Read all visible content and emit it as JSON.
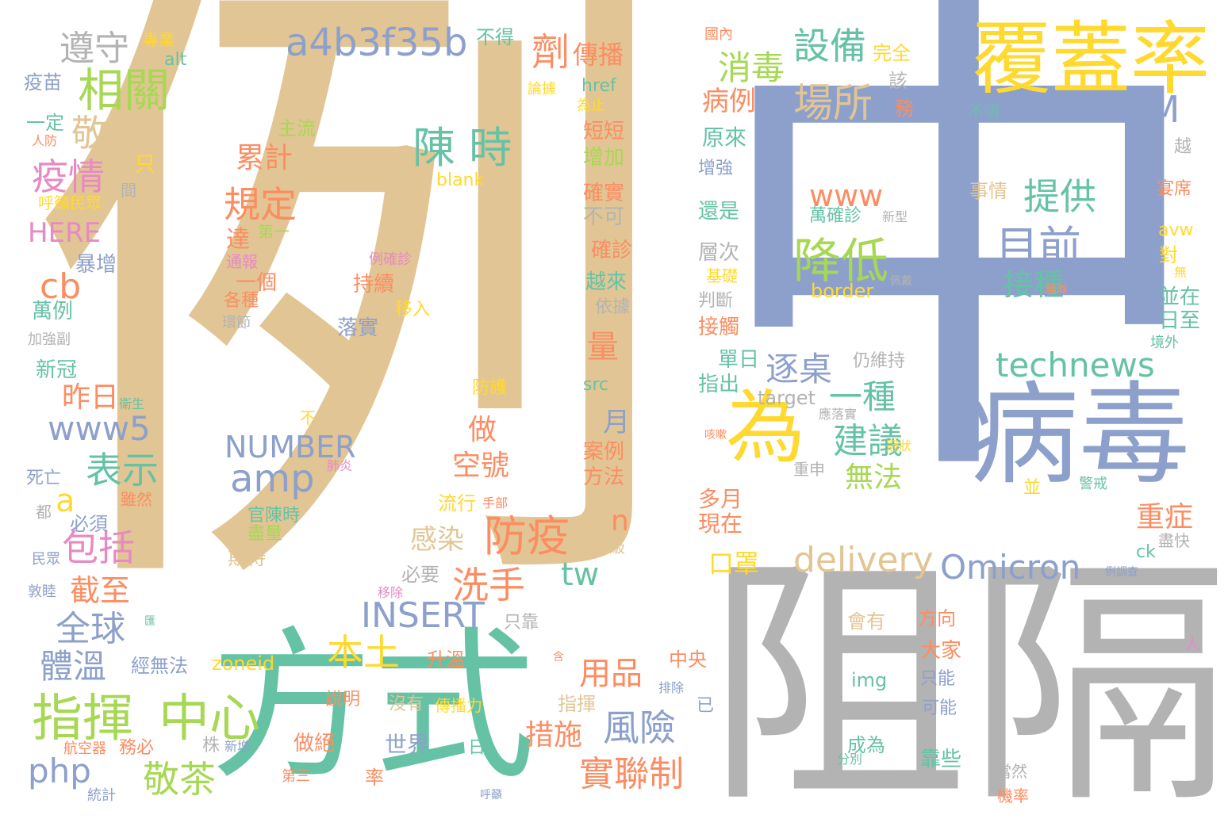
{
  "palette": {
    "tan": "#e2c594",
    "blue": "#8da0cb",
    "green": "#66c2a5",
    "grey": "#b3b3b3",
    "lime": "#a6d854",
    "yellow": "#ffd92f",
    "orange": "#fc8d62",
    "pink": "#e78ac3"
  },
  "words": {
    "li": "例",
    "zhong": "中",
    "fangshi": "方式",
    "zuge": "阻隔",
    "bingdu": "病毒",
    "fugailv": "覆蓋率",
    "yi": "一",
    "wei": "為",
    "xiangguan": "相關",
    "zhihui": "指揮",
    "zhongxin": "中心",
    "chenshi": "陳 時",
    "changsuo": "場所",
    "mubiao": "目前",
    "jiangdi": "降低",
    "tigong": "提供",
    "shebei": "設備",
    "xiaodu": "消毒",
    "a4b3": "a4b3f35b",
    "random": "RANDOM",
    "technews": "technews",
    "delivery": "delivery",
    "omicron": "Omicron",
    "insert": "INSERT",
    "number": "NUMBER",
    "amp": "amp",
    "php": "php",
    "www5": "www5",
    "www": "www",
    "zunshou": "遵守",
    "jingjiu": "敬酒",
    "yiqing": "疫情",
    "guiding": "規定",
    "fangyi": "防疫",
    "xishou": "洗手",
    "bentu": "本土",
    "fengxian": "風險",
    "shilianzhi": "實聯制",
    "jingcha": "敬茶",
    "quanqiu": "全球",
    "tiwen": "體溫",
    "baokuo": "包括",
    "biaoshi": "表示",
    "jianyi": "建議",
    "yizhong": "一種",
    "zhuozhuo": "逐桌",
    "wufa": "無法",
    "jiezhong": "接種",
    "wanquezhen": "萬確診",
    "xinxing": "新型",
    "border": "border",
    "kouzhao": "口罩",
    "zhongzheng": "重症",
    "cb": "cb",
    "a": "a",
    "here": "HERE",
    "tw": "tw",
    "n": "n",
    "ji": "劑",
    "chuanbo": "傳播",
    "bingli": "病例",
    "liang": "量",
    "zuo": "做",
    "kong": "空號",
    "ganran": "感染",
    "yongpin": "用品",
    "cuoshi": "措施",
    "shijie": "世界",
    "yue": "月",
    "anli": "案例",
    "fangfa": "方法",
    "leiji": "累計",
    "da": "達",
    "zuori": "昨日",
    "jiezhi": "截至",
    "duoyue": "多月",
    "xianzai": "現在",
    "blank": "blank",
    "src": "src",
    "zoneid": "zoneid",
    "img": "img",
    "href": "href",
    "alt": "alt",
    "ck": "ck",
    "avw": "avw",
    "target": "target",
    "buide": "不得",
    "wanquan": "完全",
    "gai": "該",
    "wu": "務",
    "bumingchu": "不明",
    "zhuanye": "專業",
    "guonei": "國內",
    "lunju": "論據",
    "weizhi": "為止",
    "yimiao": "疫苗",
    "zhuliu": "主流",
    "duanduan": "短短",
    "zengjia": "增加",
    "yiding": "一定",
    "renfang": "人防",
    "zhi": "只",
    "jian": "間",
    "huyu": "呼籲民眾",
    "queshi": "確實",
    "buke": "不可",
    "diyi": "第一",
    "tongbao": "通報",
    "yige": "一個",
    "gezhong": "各種",
    "huanjie": "環節",
    "queshen": "確診",
    "yuelaiyue": "越來",
    "yiju": "依據",
    "chixu": "持續",
    "yiru": "移入",
    "luoshi": "落實",
    "fanghu": "防護",
    "baozeng": "暴增",
    "wanli": "萬例",
    "jiaqiang": "加強副",
    "xinguan": "新冠",
    "lique": "例確診",
    "yuanlai": "原來",
    "zengqiang": "增強",
    "haishi": "還是",
    "cengci": "層次",
    "jichu": "基礎",
    "panduan": "判斷",
    "jiechu": "接觸",
    "danri": "單日",
    "zhichu": "指出",
    "shiqing": "事情",
    "yanxi": "宴席",
    "dui": "對",
    "wu2": "無",
    "bingzai": "並在",
    "rizhi": "日至",
    "jingwai": "境外",
    "reng": "仍維持",
    "peidai": "佩戴",
    "budui": "艦隊",
    "yuan": "越",
    "weisheng": "衛生",
    "bu": "不",
    "kesou": "咳嗽",
    "guanzhuang": "冠狀",
    "zhongshen": "重申",
    "bing": "並",
    "jingjie": "警戒",
    "siwang": "死亡",
    "suiran": "雖然",
    "feiyan": "肺炎",
    "shoubu": "手部",
    "liuxing": "流行",
    "dou": "都",
    "bixu": "必須",
    "guanchen": "官陳時",
    "jinliang": "盡量",
    "qidai": "期待",
    "erji": "二級",
    "minzhong": "民眾",
    "dunmu": "敦睦",
    "biyao": "必要",
    "yichu": "移除",
    "zhikao": "只靠",
    "huiyou": "會有",
    "fangxiang": "方向",
    "dajia": "大家",
    "zhineng": "只能",
    "keneng": "可能",
    "chengwei": "成為",
    "kaoxie": "靠些",
    "fenbie": "分別",
    "dangran": "當然",
    "jilv": "機率",
    "jinkuai": "盡快",
    "lidiaocha": "例調查",
    "ren": "人",
    "hui": "匯",
    "jingwufa": "經無法",
    "shengwen": "升溫",
    "zhongyang": "中央",
    "paichu": "排除",
    "yi2": "已",
    "han": "含",
    "shuoming": "說明",
    "meiyou": "沒有",
    "chuanboli": "傳播力",
    "zhihui2": "指揮",
    "hangkongqi": "航空器",
    "wubi": "務必",
    "zhu": "株",
    "xinzeng": "新增",
    "zuojue": "做絕",
    "ri": "日",
    "tongji": "統計",
    "disan": "第三",
    "lv": "率",
    "huyu2": "呼籲",
    "zhiluoshi": "應落實"
  }
}
